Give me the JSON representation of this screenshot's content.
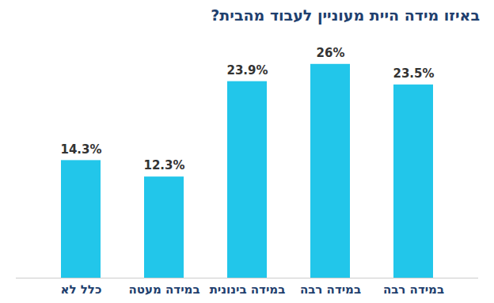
{
  "chart_data": {
    "type": "bar",
    "title": "באיזו מידה היית מעוניין לעבוד מהבית?",
    "categories": [
      "כלל לא",
      "במידה מעטה",
      "במידה בינונית",
      "במידה רבה",
      "במידה רבה"
    ],
    "values": [
      14.3,
      12.3,
      23.9,
      26,
      23.5
    ],
    "value_labels": [
      "14.3%",
      "12.3%",
      "23.9%",
      "26%",
      "23.5%"
    ],
    "color": "#22c6ea",
    "ylim": [
      0,
      28
    ],
    "data_labels": true,
    "tick_labels": "x",
    "grid": false
  }
}
